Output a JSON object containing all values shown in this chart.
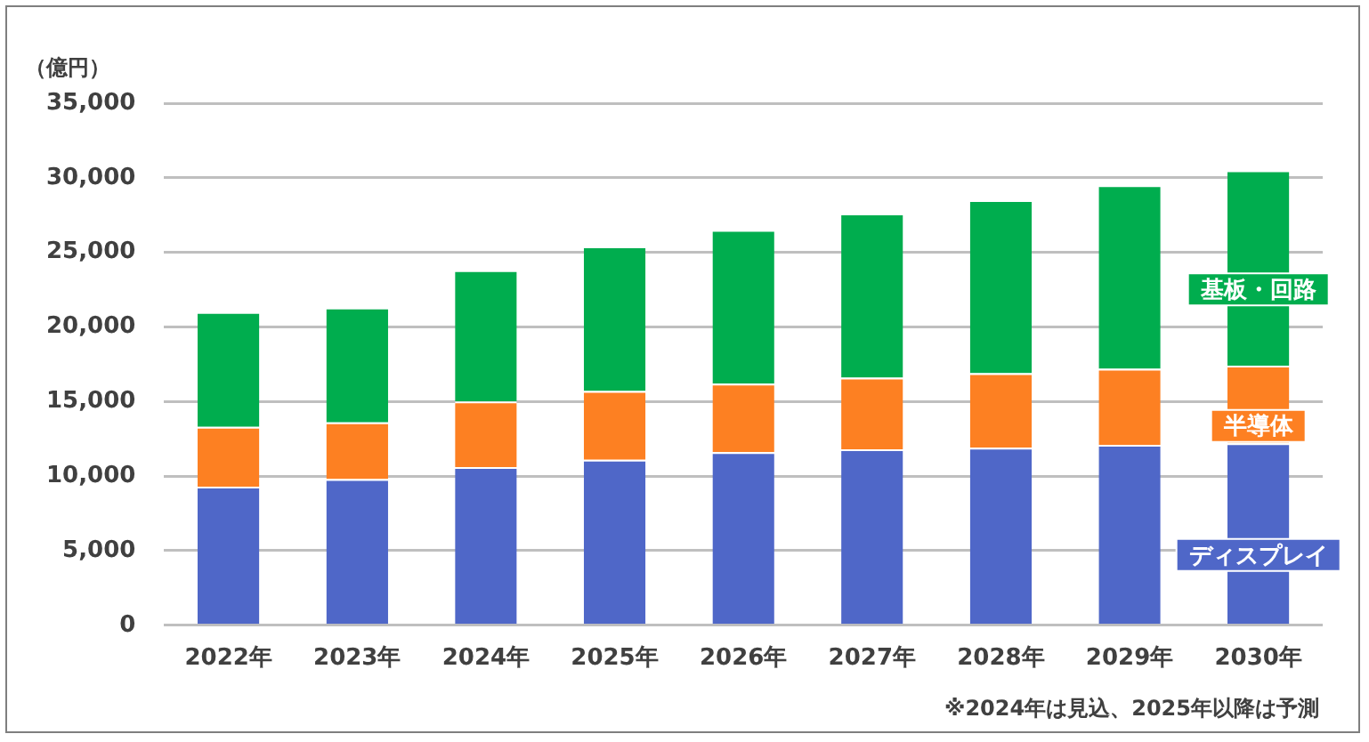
{
  "chart_data": {
    "type": "bar",
    "stacked": true,
    "ylabel": "（億円）",
    "categories": [
      "2022年",
      "2023年",
      "2024年",
      "2025年",
      "2026年",
      "2027年",
      "2028年",
      "2029年",
      "2030年"
    ],
    "series": [
      {
        "name": "ディスプレイ",
        "color": "#4f67c8",
        "values": [
          9300,
          9800,
          10600,
          11100,
          11600,
          11800,
          11900,
          12100,
          12200
        ]
      },
      {
        "name": "半導体",
        "color": "#fd8022",
        "values": [
          4000,
          3800,
          4400,
          4600,
          4600,
          4800,
          5000,
          5100,
          5200
        ]
      },
      {
        "name": "基板・回路",
        "color": "#00ad4e",
        "values": [
          7700,
          7700,
          8800,
          9700,
          10300,
          11000,
          11600,
          12300,
          13100
        ]
      }
    ],
    "ylim": [
      0,
      35000
    ],
    "yticks": [
      0,
      {
        "value": 5000,
        "label": "5,000"
      },
      {
        "value": 10000,
        "label": "10,000"
      },
      {
        "value": 15000,
        "label": "15,000"
      },
      {
        "value": 20000,
        "label": "20,000"
      },
      {
        "value": 25000,
        "label": "25,000"
      },
      {
        "value": 30000,
        "label": "30,000"
      },
      {
        "value": 35000,
        "label": "35,000"
      }
    ],
    "grid": "y",
    "legend": false,
    "annotations": [
      "※2024年は見込、2025年以降は予測"
    ]
  }
}
